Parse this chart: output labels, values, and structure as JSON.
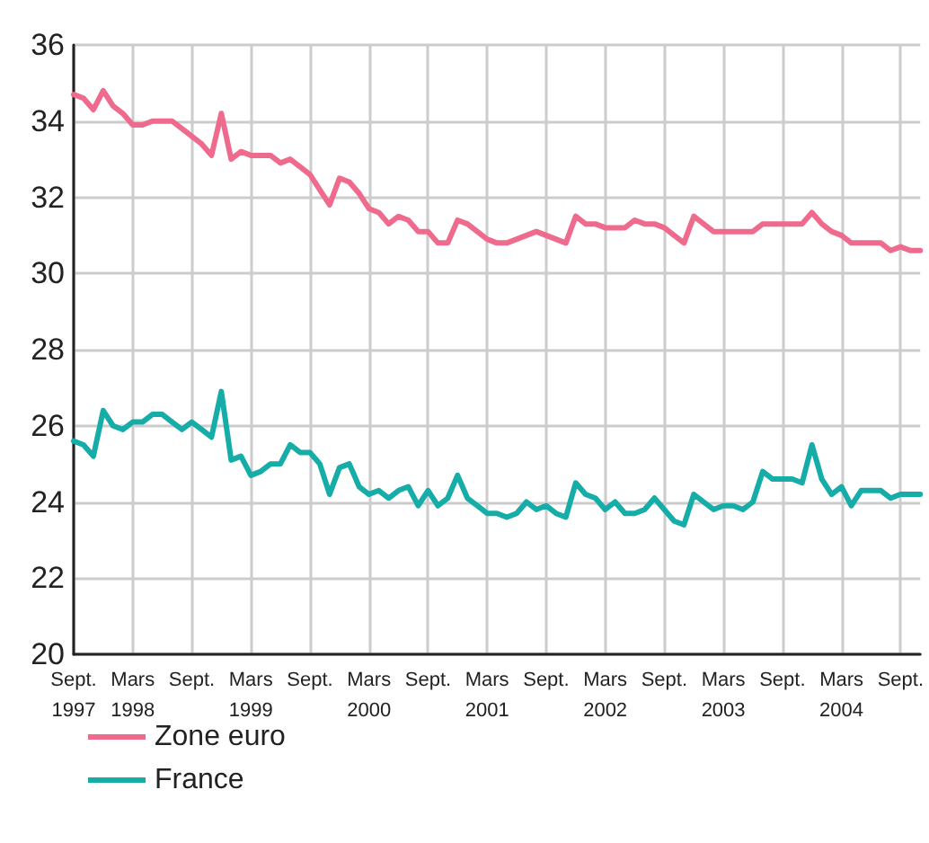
{
  "chart_data": {
    "type": "line",
    "categories": [
      "Sept.\n1997",
      null,
      null,
      null,
      null,
      null,
      "Mars\n1998",
      null,
      null,
      null,
      null,
      null,
      "Sept.",
      null,
      null,
      null,
      null,
      null,
      "Mars\n1999",
      null,
      null,
      null,
      null,
      null,
      "Sept.",
      null,
      null,
      null,
      null,
      null,
      "Mars\n2000",
      null,
      null,
      null,
      null,
      null,
      "Sept.",
      null,
      null,
      null,
      null,
      null,
      "Mars\n2001",
      null,
      null,
      null,
      null,
      null,
      "Sept.",
      null,
      null,
      null,
      null,
      null,
      "Mars\n2002",
      null,
      null,
      null,
      null,
      null,
      "Sept.",
      null,
      null,
      null,
      null,
      null,
      "Mars\n2003",
      null,
      null,
      null,
      null,
      null,
      "Sept.",
      null,
      null,
      null,
      null,
      null,
      "Mars\n2004",
      null,
      null,
      null,
      null,
      null,
      "Sept.",
      null,
      null
    ],
    "series": [
      {
        "name": "Zone euro",
        "color": "#ee6b8d",
        "values": [
          34.7,
          34.6,
          34.3,
          34.8,
          34.4,
          34.2,
          33.9,
          33.9,
          34.0,
          34.0,
          34.0,
          33.8,
          33.6,
          33.4,
          33.1,
          34.2,
          33.0,
          33.2,
          33.1,
          33.1,
          33.1,
          32.9,
          33.0,
          32.8,
          32.6,
          32.2,
          31.8,
          32.5,
          32.4,
          32.1,
          31.7,
          31.6,
          31.3,
          31.5,
          31.4,
          31.1,
          31.1,
          30.8,
          30.8,
          31.4,
          31.3,
          31.1,
          30.9,
          30.8,
          30.8,
          30.9,
          31.0,
          31.1,
          31.0,
          30.9,
          30.8,
          31.5,
          31.3,
          31.3,
          31.2,
          31.2,
          31.2,
          31.4,
          31.3,
          31.3,
          31.2,
          31.0,
          30.8,
          31.5,
          31.3,
          31.1,
          31.1,
          31.1,
          31.1,
          31.1,
          31.3,
          31.3,
          31.3,
          31.3,
          31.3,
          31.6,
          31.3,
          31.1,
          31.0,
          30.8,
          30.8,
          30.8,
          30.8,
          30.6,
          30.7,
          30.6,
          30.6
        ]
      },
      {
        "name": "France",
        "color": "#16ada9",
        "values": [
          25.6,
          25.5,
          25.2,
          26.4,
          26.0,
          25.9,
          26.1,
          26.1,
          26.3,
          26.3,
          26.1,
          25.9,
          26.1,
          25.9,
          25.7,
          26.9,
          25.1,
          25.2,
          24.7,
          24.8,
          25.0,
          25.0,
          25.5,
          25.3,
          25.3,
          25.0,
          24.2,
          24.9,
          25.0,
          24.4,
          24.2,
          24.3,
          24.1,
          24.3,
          24.4,
          23.9,
          24.3,
          23.9,
          24.1,
          24.7,
          24.1,
          23.9,
          23.7,
          23.7,
          23.6,
          23.7,
          24.0,
          23.8,
          23.9,
          23.7,
          23.6,
          24.5,
          24.2,
          24.1,
          23.8,
          24.0,
          23.7,
          23.7,
          23.8,
          24.1,
          23.8,
          23.5,
          23.4,
          24.2,
          24.0,
          23.8,
          23.9,
          23.9,
          23.8,
          24.0,
          24.8,
          24.6,
          24.6,
          24.6,
          24.5,
          25.5,
          24.6,
          24.2,
          24.4,
          23.9,
          24.3,
          24.3,
          24.3,
          24.1,
          24.2,
          24.2,
          24.2
        ]
      }
    ],
    "ylim": [
      20,
      36
    ],
    "yticks": [
      20,
      22,
      24,
      26,
      28,
      30,
      32,
      34,
      36
    ],
    "grid": true,
    "legend": "bottom left",
    "marker": "none",
    "line_style": "solid"
  }
}
